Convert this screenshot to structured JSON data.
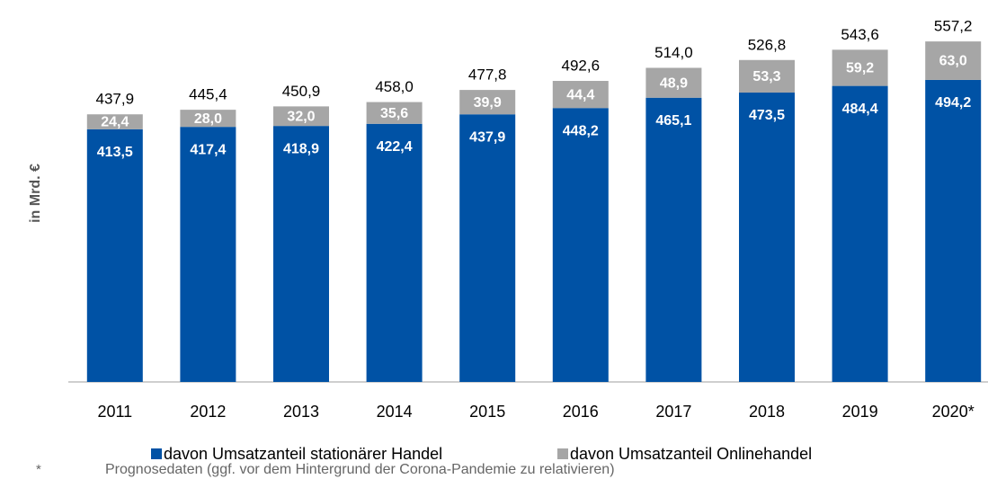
{
  "chart_data": {
    "type": "stacked_bar",
    "y_label": "in Mrd. €",
    "categories": [
      "2011",
      "2012",
      "2013",
      "2014",
      "2015",
      "2016",
      "2017",
      "2018",
      "2019",
      "2020*"
    ],
    "series": [
      {
        "name": "davon Umsatzanteil stationärer Handel",
        "color": "#0052a5",
        "values": [
          413.5,
          417.4,
          418.9,
          422.4,
          437.9,
          448.2,
          465.1,
          473.5,
          484.4,
          494.2
        ],
        "value_labels": [
          "413,5",
          "417,4",
          "418,9",
          "422,4",
          "437,9",
          "448,2",
          "465,1",
          "473,5",
          "484,4",
          "494,2"
        ]
      },
      {
        "name": "davon Umsatzanteil Onlinehandel",
        "color": "#a6a6a6",
        "values": [
          24.4,
          28.0,
          32.0,
          35.6,
          39.9,
          44.4,
          48.9,
          53.3,
          59.2,
          63.0
        ],
        "value_labels": [
          "24,4",
          "28,0",
          "32,0",
          "35,6",
          "39,9",
          "44,4",
          "48,9",
          "53,3",
          "59,2",
          "63,0"
        ]
      }
    ],
    "totals": [
      437.9,
      445.4,
      450.9,
      458.0,
      477.8,
      492.6,
      514.0,
      526.8,
      543.6,
      557.2
    ],
    "total_labels": [
      "437,9",
      "445,4",
      "450,9",
      "458,0",
      "477,8",
      "492,6",
      "514,0",
      "526,8",
      "543,6",
      "557,2"
    ],
    "ylim": [
      0,
      600
    ],
    "footnote_marker": "*",
    "footnote": "Prognosedaten (ggf. vor dem Hintergrund der Corona-Pandemie zu relativieren)"
  }
}
